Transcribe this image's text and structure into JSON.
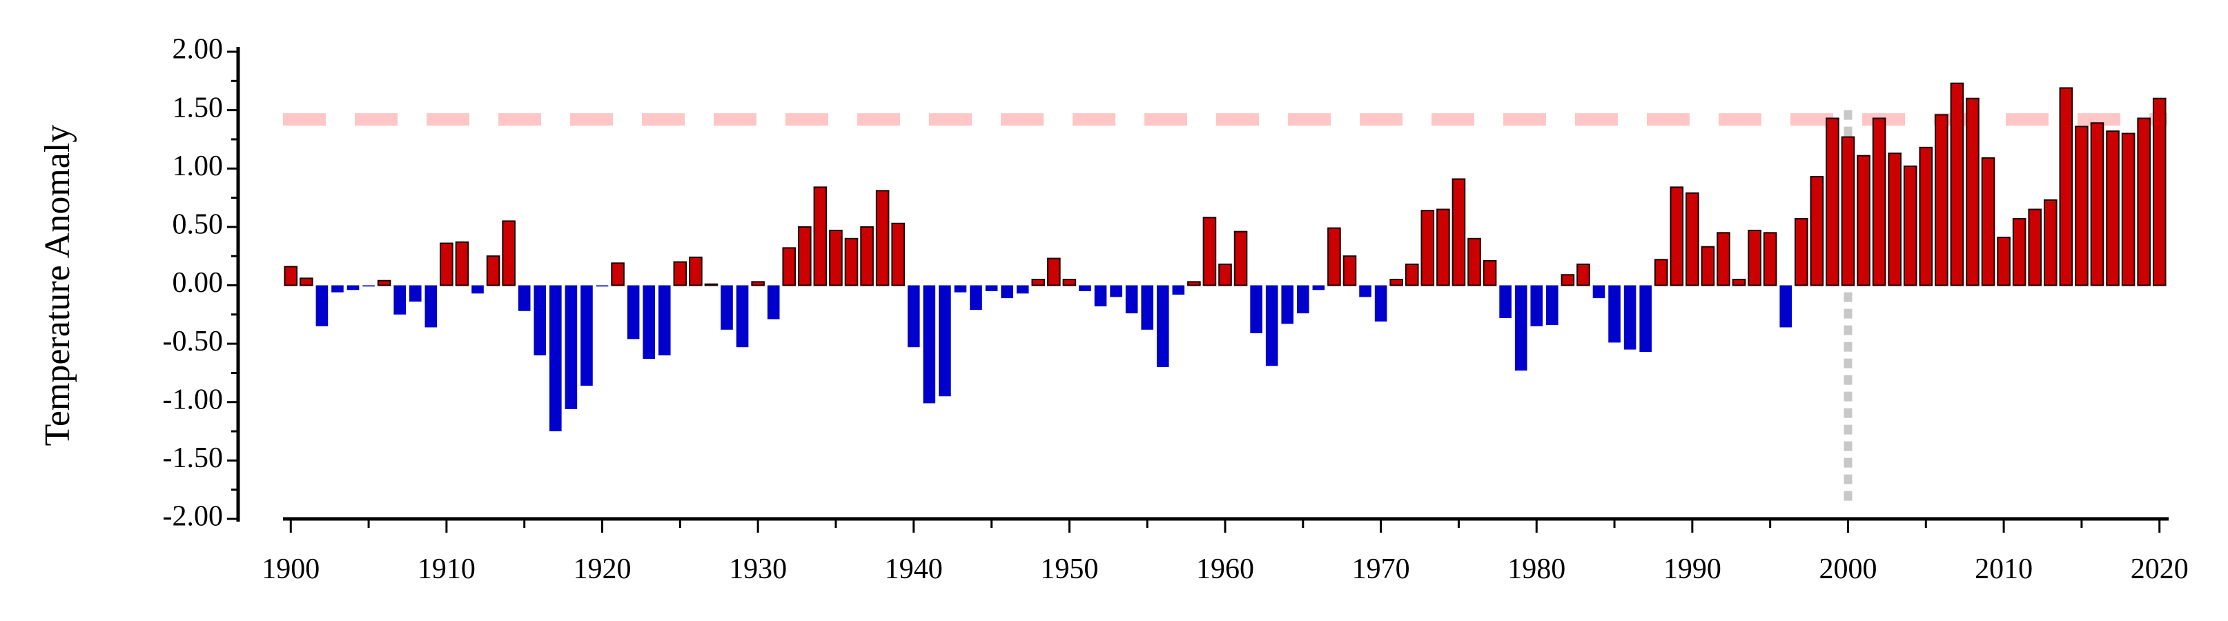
{
  "chart_data": {
    "type": "bar",
    "xlabel": "",
    "ylabel": "Temperature Anomaly",
    "ylim": [
      -2.0,
      2.0
    ],
    "xlim": [
      1899.5,
      2020.5
    ],
    "y_ticks": [
      "2.00",
      "1.50",
      "1.00",
      "0.50",
      "0.00",
      "-0.50",
      "-1.00",
      "-1.50",
      "-2.00"
    ],
    "x_ticks": [
      "1900",
      "1910",
      "1920",
      "1930",
      "1940",
      "1950",
      "1960",
      "1970",
      "1980",
      "1990",
      "2000",
      "2010",
      "2020"
    ],
    "colors": {
      "positive": "#cc0000",
      "negative": "#0000cc",
      "threshold_line": "#ffc6c6",
      "marker_line": "#c8c8c8"
    },
    "threshold_line": {
      "y": 1.42,
      "style": "dashed"
    },
    "vertical_marker": {
      "x": 2000,
      "style": "dotted"
    },
    "grid": false,
    "x": [
      1900,
      1901,
      1902,
      1903,
      1904,
      1905,
      1906,
      1907,
      1908,
      1909,
      1910,
      1911,
      1912,
      1913,
      1914,
      1915,
      1916,
      1917,
      1918,
      1919,
      1920,
      1921,
      1922,
      1923,
      1924,
      1925,
      1926,
      1927,
      1928,
      1929,
      1930,
      1931,
      1932,
      1933,
      1934,
      1935,
      1936,
      1937,
      1938,
      1939,
      1940,
      1941,
      1942,
      1943,
      1944,
      1945,
      1946,
      1947,
      1948,
      1949,
      1950,
      1951,
      1952,
      1953,
      1954,
      1955,
      1956,
      1957,
      1958,
      1959,
      1960,
      1961,
      1962,
      1963,
      1964,
      1965,
      1966,
      1967,
      1968,
      1969,
      1970,
      1971,
      1972,
      1973,
      1974,
      1975,
      1976,
      1977,
      1978,
      1979,
      1980,
      1981,
      1982,
      1983,
      1984,
      1985,
      1986,
      1987,
      1988,
      1989,
      1990,
      1991,
      1992,
      1993,
      1994,
      1995,
      1996,
      1997,
      1998,
      1999,
      2000,
      2001,
      2002,
      2003,
      2004,
      2005,
      2006,
      2007,
      2008,
      2009,
      2010,
      2011,
      2012,
      2013,
      2014,
      2015,
      2016,
      2017,
      2018,
      2019,
      2020
    ],
    "values": [
      0.16,
      0.06,
      -0.35,
      -0.06,
      -0.04,
      -0.01,
      0.04,
      -0.25,
      -0.14,
      -0.36,
      0.36,
      0.37,
      -0.07,
      0.25,
      0.55,
      -0.22,
      -0.6,
      -1.25,
      -1.06,
      -0.86,
      -0.01,
      0.19,
      -0.46,
      -0.63,
      -0.6,
      0.2,
      0.24,
      0.01,
      -0.38,
      -0.53,
      0.03,
      -0.29,
      0.32,
      0.5,
      0.84,
      0.47,
      0.4,
      0.5,
      0.81,
      0.53,
      -0.53,
      -1.01,
      -0.95,
      -0.06,
      -0.21,
      -0.05,
      -0.11,
      -0.07,
      0.05,
      0.23,
      0.05,
      -0.05,
      -0.18,
      -0.1,
      -0.24,
      -0.38,
      -0.7,
      -0.08,
      0.03,
      0.58,
      0.18,
      0.46,
      -0.41,
      -0.69,
      -0.33,
      -0.24,
      -0.04,
      0.49,
      0.25,
      -0.1,
      -0.31,
      0.05,
      0.18,
      0.64,
      0.65,
      0.91,
      0.4,
      0.21,
      -0.28,
      -0.73,
      -0.35,
      -0.34,
      0.09,
      0.18,
      -0.11,
      -0.49,
      -0.55,
      -0.57,
      0.22,
      0.84,
      0.79,
      0.33,
      0.45,
      0.05,
      0.47,
      0.45,
      -0.36,
      0.57,
      0.93,
      1.43,
      1.27,
      1.11,
      1.43,
      1.13,
      1.02,
      1.18,
      1.46,
      1.73,
      1.6,
      1.09,
      0.41,
      0.57,
      0.65,
      0.73,
      1.69,
      1.36,
      1.39,
      1.32,
      1.3,
      1.43,
      1.6
    ]
  }
}
